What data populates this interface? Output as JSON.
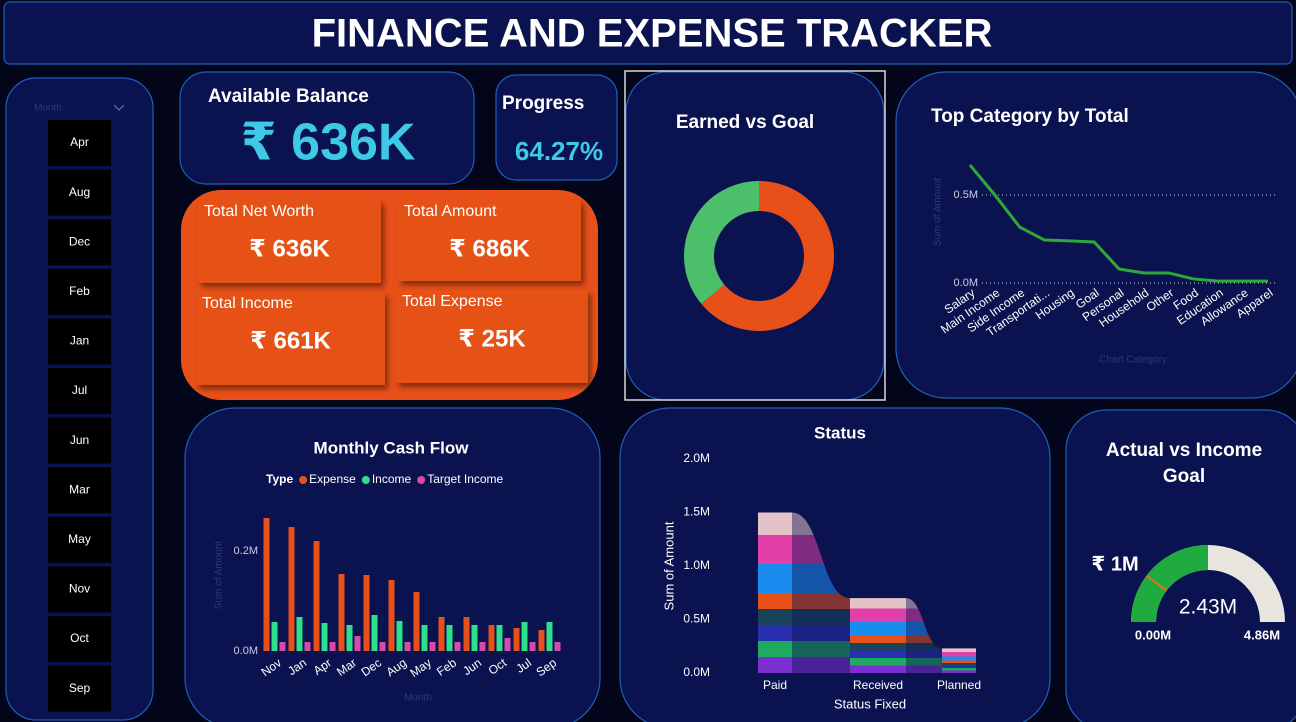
{
  "title": "FINANCE AND EXPENSE TRACKER",
  "slicer": {
    "label": "Month",
    "items": [
      "Apr",
      "Aug",
      "Dec",
      "Feb",
      "Jan",
      "Jul",
      "Jun",
      "Mar",
      "May",
      "Nov",
      "Oct",
      "Sep"
    ]
  },
  "balance": {
    "label": "Available Balance",
    "value": "₹ 636K"
  },
  "progress": {
    "label": "Progress",
    "value": "64.27%"
  },
  "cards": [
    {
      "label": "Total Net Worth",
      "value": "₹ 636K"
    },
    {
      "label": "Total Amount",
      "value": "₹ 686K"
    },
    {
      "label": "Total Income",
      "value": "₹ 661K"
    },
    {
      "label": "Total Expense",
      "value": "₹ 25K"
    }
  ],
  "chart_data": [
    {
      "type": "donut",
      "title": "Earned vs Goal",
      "values": [
        64,
        36
      ],
      "colors": [
        "#e8501a",
        "#4cbf6a"
      ]
    },
    {
      "type": "line",
      "title": "Top Category by Total",
      "y_label": "Sum of Amount",
      "x_label": "Chart Category",
      "categories": [
        "Salary",
        "Main Income",
        "Side Income",
        "Transportati...",
        "Housing",
        "Goal",
        "Personal",
        "Household",
        "Other",
        "Food",
        "Education",
        "Allowance",
        "Apparel"
      ],
      "values": [
        670000,
        500000,
        318000,
        244000,
        239000,
        233000,
        80000,
        57000,
        57000,
        23000,
        11000,
        11000,
        11000
      ],
      "color": "#2fa83a",
      "ylim": [
        0,
        750000
      ],
      "yticks": [
        {
          "value": 0,
          "label": "0.0M"
        },
        {
          "value": 500000,
          "label": "0.5M"
        }
      ],
      "grid": true
    },
    {
      "type": "bar",
      "title": "Monthly Cash Flow",
      "legend_title": "Type",
      "y_label": "Sum of Amount",
      "x_label": "Month",
      "categories": [
        "Nov",
        "Jan",
        "Apr",
        "Mar",
        "Dec",
        "Aug",
        "May",
        "Feb",
        "Jun",
        "Oct",
        "Jul",
        "Sep"
      ],
      "series": [
        {
          "name": "Expense",
          "color": "#e8501a",
          "values": [
            266000,
            248000,
            220000,
            154000,
            152000,
            142000,
            118000,
            68000,
            68000,
            52000,
            46000,
            42000
          ]
        },
        {
          "name": "Income",
          "color": "#2ee08a",
          "values": [
            58000,
            68000,
            56000,
            52000,
            72000,
            60000,
            52000,
            52000,
            52000,
            52000,
            58000,
            58000
          ]
        },
        {
          "name": "Target Income",
          "color": "#d64aa8",
          "values": [
            18000,
            18000,
            18000,
            30000,
            18000,
            18000,
            18000,
            18000,
            18000,
            26000,
            18000,
            18000
          ]
        }
      ],
      "ylim": [
        0,
        280000
      ],
      "yticks": [
        {
          "value": 0,
          "label": "0.0M"
        },
        {
          "value": 200000,
          "label": "0.2M"
        }
      ]
    },
    {
      "type": "ribbon",
      "title": "Status",
      "y_label": "Sum of Amount",
      "x_label": "Status Fixed",
      "categories": [
        "Paid",
        "Received",
        "Planned"
      ],
      "values": [
        1500000,
        700000,
        230000
      ],
      "ylim": [
        0,
        2000000
      ],
      "yticks": [
        {
          "value": 0,
          "label": "0.0M"
        },
        {
          "value": 500000,
          "label": "0.5M"
        },
        {
          "value": 1000000,
          "label": "1.0M"
        },
        {
          "value": 1500000,
          "label": "1.5M"
        },
        {
          "value": 2000000,
          "label": "2.0M"
        }
      ]
    },
    {
      "type": "gauge",
      "title": "Actual vs Income Goal",
      "values": [
        2430000
      ],
      "value_labels": [
        "2.43M"
      ],
      "target": {
        "value": 1000000,
        "label": "₹ 1M"
      },
      "ylim": [
        0,
        4860000
      ],
      "yticks": [
        {
          "value": 0,
          "label": "0.00M"
        },
        {
          "value": 4860000,
          "label": "4.86M"
        }
      ],
      "color": "#1fab3f",
      "track_color": "#e8e4de"
    }
  ]
}
